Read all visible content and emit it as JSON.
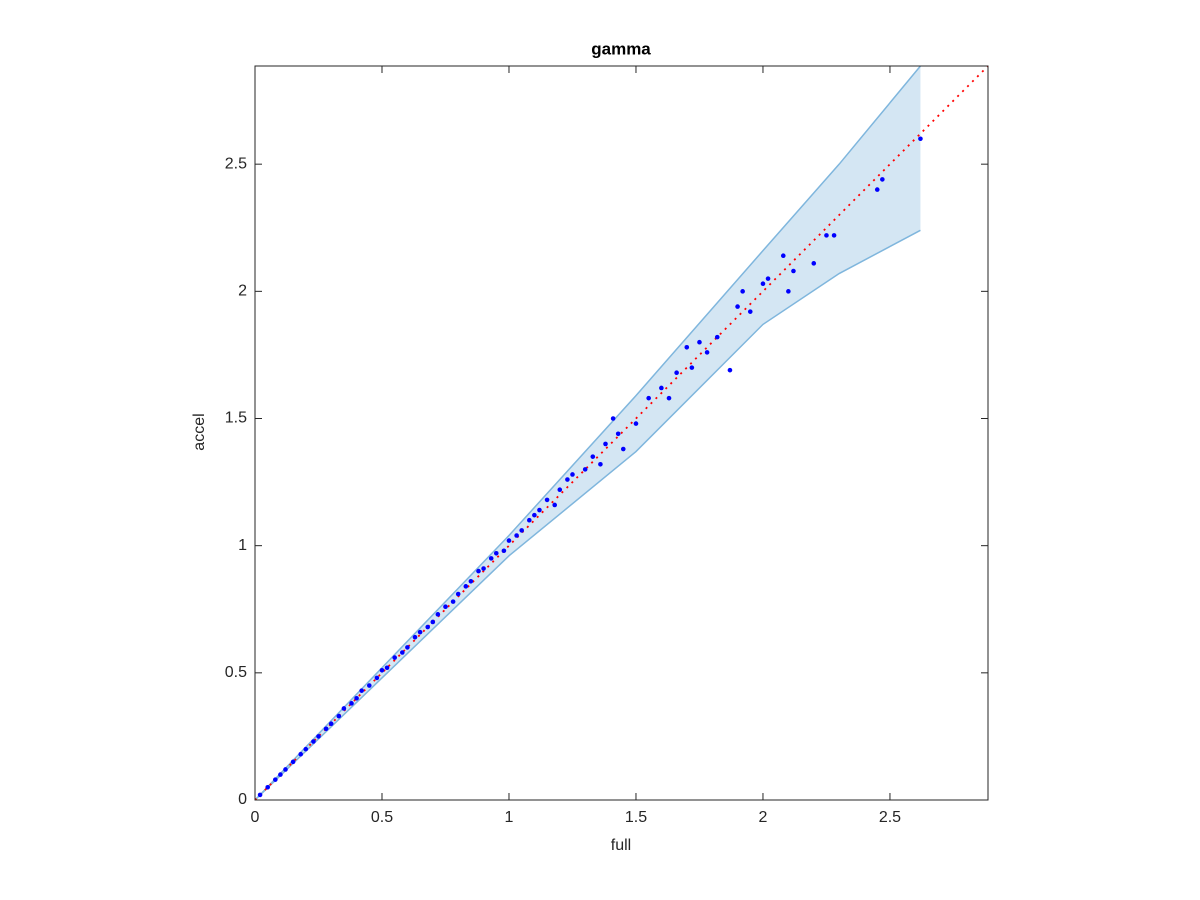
{
  "chart_data": {
    "type": "scatter",
    "title": "gamma",
    "x_label": "full",
    "y_label": "accel",
    "xlim": [
      0,
      2.886
    ],
    "ylim": [
      0,
      2.886
    ],
    "xticks": [
      0,
      0.5,
      1,
      1.5,
      2,
      2.5
    ],
    "yticks": [
      0,
      0.5,
      1,
      1.5,
      2,
      2.5
    ],
    "points": {
      "color": "#0000ff",
      "x": [
        0.02,
        0.05,
        0.08,
        0.1,
        0.12,
        0.15,
        0.18,
        0.2,
        0.23,
        0.25,
        0.28,
        0.3,
        0.33,
        0.35,
        0.38,
        0.4,
        0.42,
        0.45,
        0.48,
        0.5,
        0.52,
        0.55,
        0.58,
        0.6,
        0.63,
        0.65,
        0.68,
        0.7,
        0.72,
        0.75,
        0.78,
        0.8,
        0.83,
        0.85,
        0.88,
        0.9,
        0.93,
        0.95,
        0.98,
        1.0,
        1.03,
        1.05,
        1.08,
        1.1,
        1.12,
        1.15,
        1.18,
        1.2,
        1.23,
        1.25,
        1.3,
        1.33,
        1.36,
        1.38,
        1.41,
        1.43,
        1.45,
        1.5,
        1.55,
        1.6,
        1.63,
        1.66,
        1.7,
        1.72,
        1.75,
        1.78,
        1.82,
        1.87,
        1.9,
        1.92,
        1.95,
        2.0,
        2.02,
        2.08,
        2.1,
        2.12,
        2.2,
        2.25,
        2.28,
        2.45,
        2.47,
        2.62
      ],
      "y": [
        0.02,
        0.05,
        0.08,
        0.1,
        0.12,
        0.15,
        0.18,
        0.2,
        0.23,
        0.25,
        0.28,
        0.3,
        0.33,
        0.36,
        0.38,
        0.4,
        0.43,
        0.45,
        0.48,
        0.51,
        0.52,
        0.56,
        0.58,
        0.6,
        0.64,
        0.66,
        0.68,
        0.7,
        0.73,
        0.76,
        0.78,
        0.81,
        0.84,
        0.86,
        0.9,
        0.91,
        0.95,
        0.97,
        0.98,
        1.02,
        1.04,
        1.06,
        1.1,
        1.12,
        1.14,
        1.18,
        1.16,
        1.22,
        1.26,
        1.28,
        1.3,
        1.35,
        1.32,
        1.4,
        1.5,
        1.44,
        1.38,
        1.48,
        1.58,
        1.62,
        1.58,
        1.68,
        1.78,
        1.7,
        1.8,
        1.76,
        1.82,
        1.69,
        1.94,
        2.0,
        1.92,
        2.03,
        2.05,
        2.14,
        2.0,
        2.08,
        2.11,
        2.22,
        2.22,
        2.4,
        2.44,
        2.6
      ]
    },
    "band": {
      "color": "#d4e6f3",
      "edge_color": "#7fb6dd",
      "x": [
        0,
        0.5,
        1,
        1.5,
        2,
        2.3,
        2.62
      ],
      "upper": [
        0,
        0.52,
        1.04,
        1.59,
        2.16,
        2.5,
        2.89
      ],
      "lower": [
        0,
        0.48,
        0.96,
        1.37,
        1.87,
        2.07,
        2.24
      ]
    },
    "reference_line": {
      "color": "#ff0000",
      "x": [
        0,
        2.886
      ],
      "y": [
        0,
        2.886
      ]
    }
  }
}
